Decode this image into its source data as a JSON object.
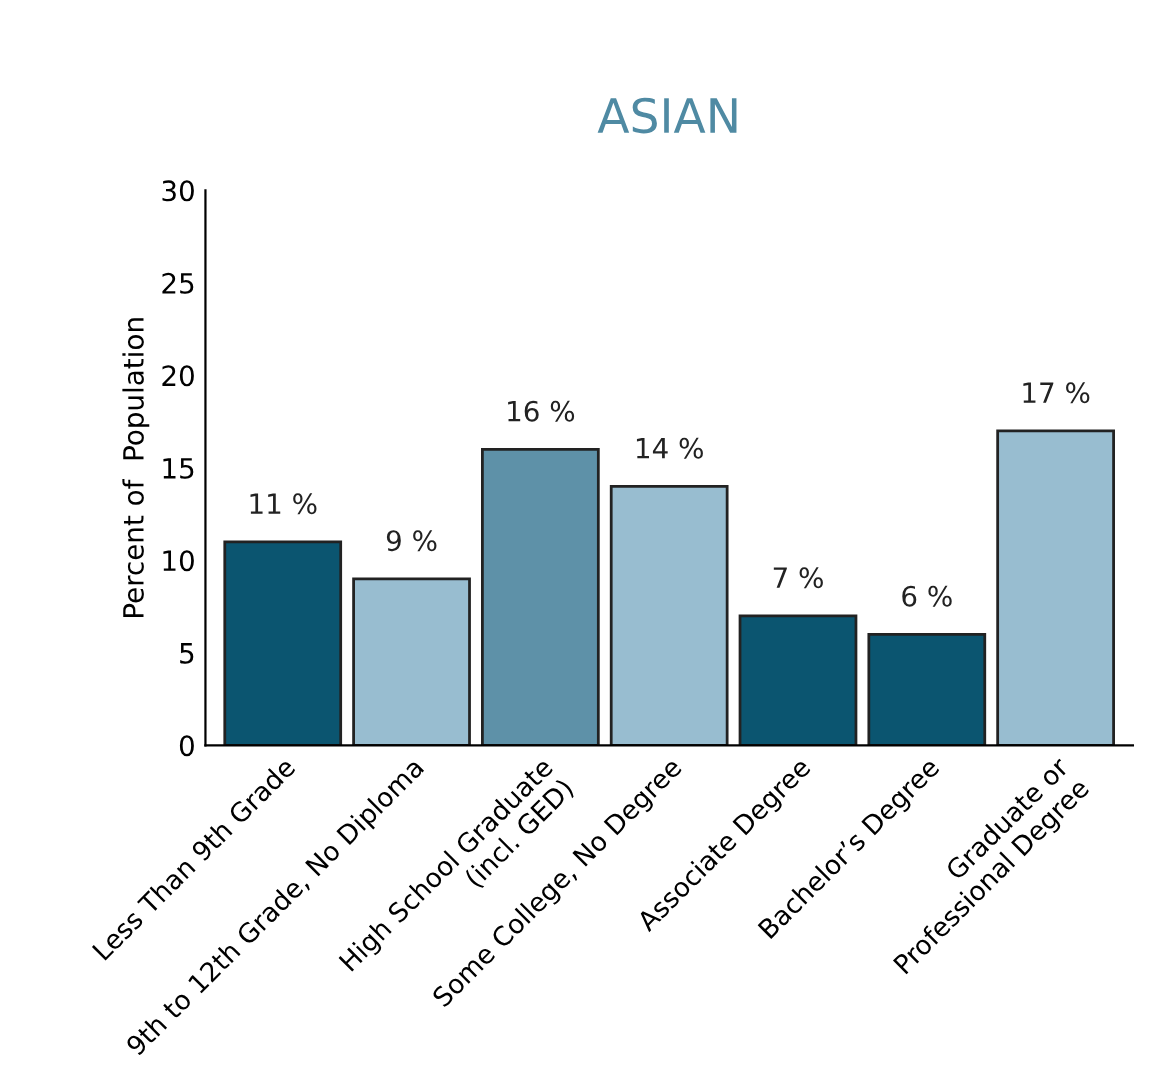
{
  "chart_data": {
    "type": "bar",
    "title": "ASIAN",
    "ylabel": "Percent of  Population",
    "categories": [
      "Less Than 9th Grade",
      "9th to 12th Grade, No Diploma",
      "High School Graduate\n(incl. GED)",
      "Some College, No Degree",
      "Associate Degree",
      "Bachelor’s Degree",
      "Graduate or\nProfessional Degree"
    ],
    "values": [
      11,
      9,
      16,
      14,
      7,
      6,
      17
    ],
    "value_labels": [
      "11 %",
      "9 %",
      "16 %",
      "14 %",
      "7 %",
      "6 %",
      "17 %"
    ],
    "colors": [
      "#0b5570",
      "#98bdd0",
      "#5e91a8",
      "#98bdd0",
      "#0b5570",
      "#0b5570",
      "#98bdd0"
    ],
    "ylim": [
      0,
      30
    ],
    "yticks": [
      0,
      5,
      10,
      15,
      20,
      25,
      30
    ],
    "grid": false,
    "legend": false
  }
}
